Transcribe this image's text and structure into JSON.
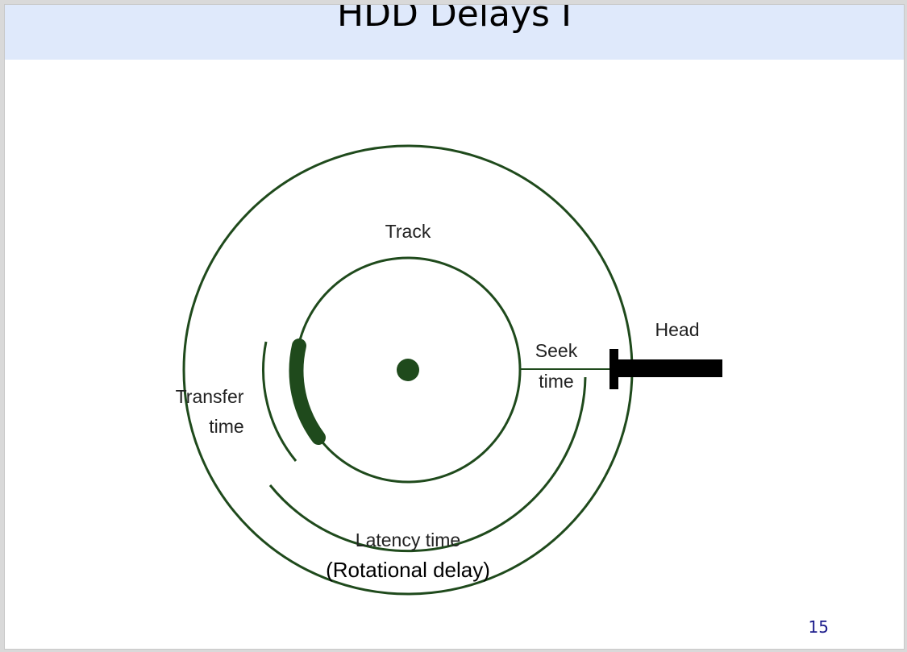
{
  "slide": {
    "title": "HDD Delays I",
    "page_number": "15"
  },
  "diagram": {
    "labels": {
      "track": "Track",
      "head": "Head",
      "seek_line1": "Seek",
      "seek_line2": "time",
      "transfer_line1": "Transfer",
      "transfer_line2": "time",
      "latency": "Latency time",
      "rotational": "(Rotational delay)"
    },
    "colors": {
      "line": "#1f4a1c",
      "sector": "#1f4a1c",
      "head": "#000000",
      "title_bar": "#dfe9fb",
      "page_number": "#1a1a8a"
    }
  }
}
